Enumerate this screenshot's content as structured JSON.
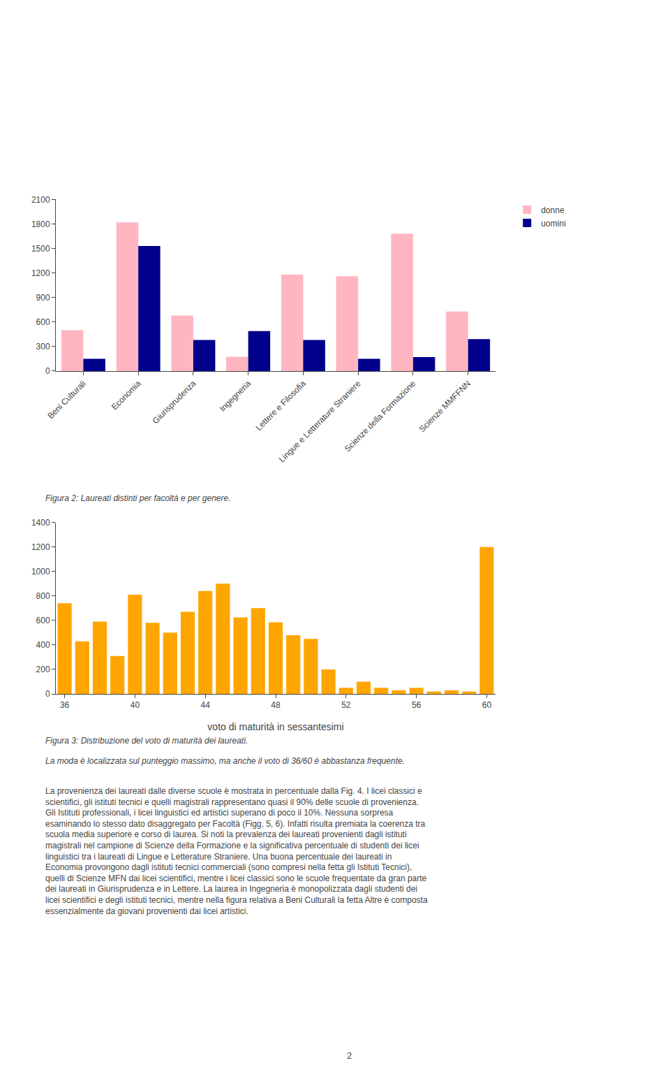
{
  "chart_data": [
    {
      "type": "bar",
      "title": "Figura 2: Laureati distinti per facoltà e per genere.",
      "categories": [
        "Beni Culturali",
        "Economia",
        "Giurisprudenza",
        "Ingegneria",
        "Lettere e Filosofia",
        "Lingue e Letterature Straniere",
        "Scienze della Formazione",
        "Scienze MMFFNN"
      ],
      "series": [
        {
          "name": "donne",
          "color": "#FFB6C1",
          "values": [
            500,
            1820,
            680,
            175,
            1180,
            1160,
            1680,
            730
          ]
        },
        {
          "name": "uomini",
          "color": "#00008B",
          "values": [
            150,
            1530,
            380,
            490,
            380,
            150,
            170,
            390
          ]
        }
      ],
      "ylim": [
        0,
        2100
      ],
      "yticks": [
        0,
        300,
        600,
        900,
        1200,
        1500,
        1800,
        2100
      ],
      "grid": false,
      "legend": "right"
    },
    {
      "type": "bar",
      "title": "Figura 3: Distribuzione del voto di maturità dei laureati.",
      "x": [
        36,
        37,
        38,
        39,
        40,
        41,
        42,
        43,
        44,
        45,
        46,
        47,
        48,
        49,
        50,
        51,
        52,
        53,
        54,
        55,
        56,
        57,
        58,
        59,
        60
      ],
      "values": [
        740,
        430,
        590,
        310,
        810,
        580,
        500,
        670,
        840,
        900,
        625,
        700,
        585,
        480,
        450,
        200,
        50,
        100,
        50,
        30,
        50,
        20,
        30,
        20,
        1200
      ],
      "color": "#FFA500",
      "xlim": [
        35.5,
        60.5
      ],
      "xticks": [
        36,
        40,
        44,
        48,
        52,
        56,
        60
      ],
      "ylim": [
        0,
        1400
      ],
      "yticks": [
        0,
        200,
        400,
        600,
        800,
        1000,
        1200,
        1400
      ],
      "xlabel": "voto di maturità in sessantesimi",
      "grid": false,
      "annotations": [
        "La moda è localizzata sul punteggio massimo, ma anche il voto di 36/60 è abbastanza frequente.",
        "La provenienza dei laureati dalle diverse scuole è mostrata in percentuale dalla Fig. 4. I licei classici e\nscientifici, gli istituti tecnici e quelli magistrali rappresentano quasi il 90% delle scuole di provenienza.\nGli Istituti professionali, i licei linguistici ed artistici superano di poco il 10%. Nessuna sorpresa\nesaminando lo stesso dato disaggregato per Facoltà (Figg. 5, 6). Infatti risulta premiata la coerenza tra\nscuola media superiore e corso di laurea. Si noti la prevalenza dei laureati provenienti dagli istituti\nmagistrali nel campione di Scienze della Formazione e la significativa percentuale di studenti dei licei\nlinguistici tra i laureati di Lingue e Letterature Straniere. Una buona percentuale dei laureati in\nEconomia provongono dagli istituti tecnici commerciali (sono compresi nella fetta gli Istituti Tecnici),\nquelli di Scienze MFN dai licei scientifici, mentre i licei classici sono le scuole frequentate da gran parte\ndei laureati in Giurisprudenza e in Lettere. La laurea in Ingegneria è monopolizzata dagli studenti dei\nlicei scientifici e degli istituti tecnici, mentre nella figura relativa a Beni Culturali la fetta Altre è composta\nessenzialmente da giovani provenienti dai licei artistici.",
        "2"
      ]
    }
  ]
}
